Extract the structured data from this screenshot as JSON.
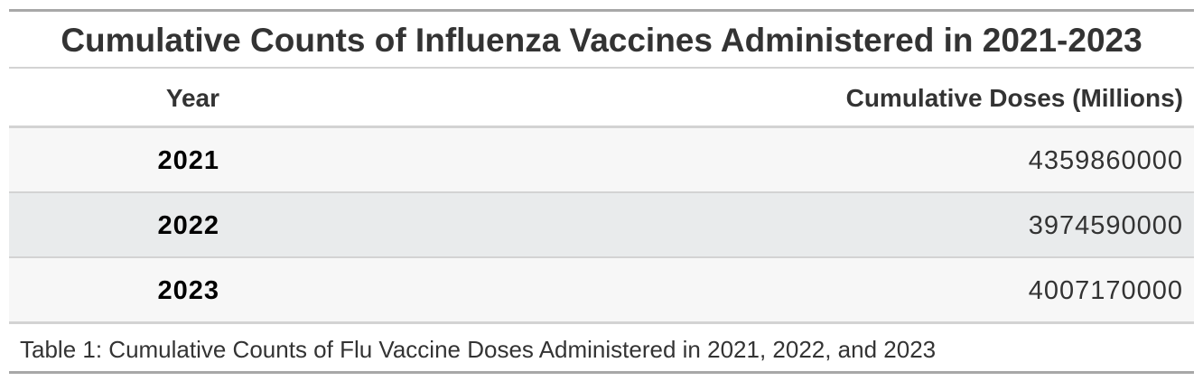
{
  "title": "Cumulative Counts of Influenza Vaccines Administered in 2021-2023",
  "table": {
    "columns": [
      "Year",
      "Cumulative Doses (Millions)"
    ],
    "rows": [
      [
        2021,
        4359860000
      ],
      [
        2022,
        3974590000
      ],
      [
        2023,
        4007170000
      ]
    ]
  },
  "caption": "Table 1: Cumulative Counts of Flu Vaccine Doses Administered in 2021, 2022, and 2023"
}
